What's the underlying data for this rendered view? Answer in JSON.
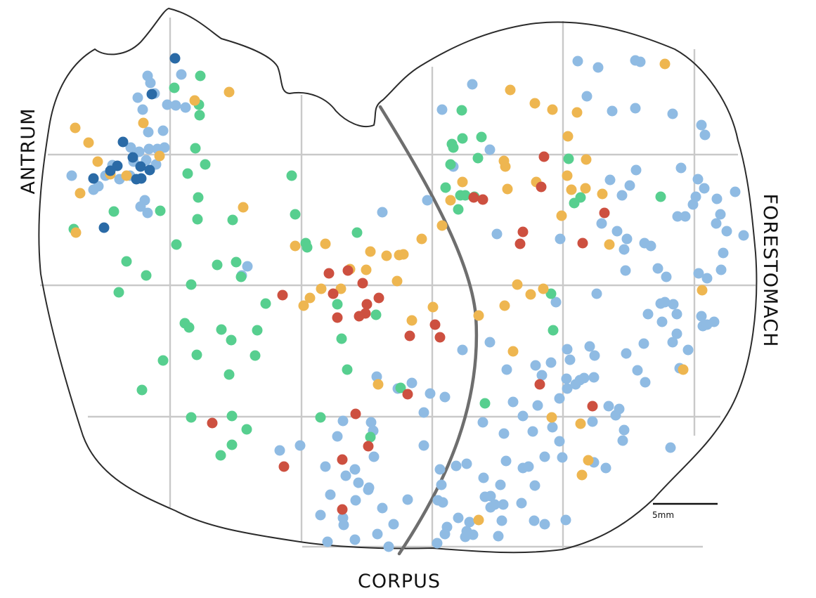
{
  "labels": {
    "antrum": "ANTRUM",
    "forestomach": "FORESTOMACH",
    "corpus": "CORPUS",
    "scale_bar": "5mm"
  },
  "colors": {
    "light_blue": "#8fbbe3",
    "green": "#57cf8f",
    "orange": "#eeb650",
    "red": "#cd5040",
    "dark_blue": "#2a6aa6",
    "outline": "#2b2b2b",
    "boundary": "#6e6e6e",
    "grid": "#c9c9c9"
  }
}
